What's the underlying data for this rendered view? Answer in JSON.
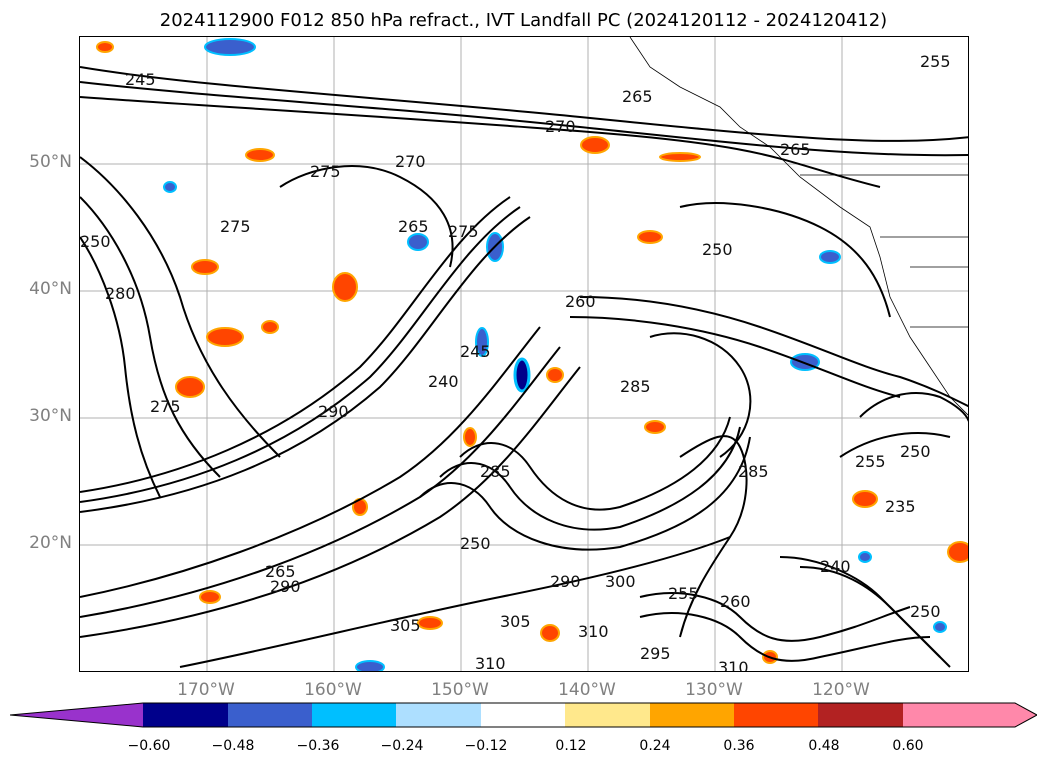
{
  "title": "2024112900 F012 850 hPa refract., IVT Landfall PC (2024120112 - 2024120412)",
  "lat_labels": [
    "50°N",
    "40°N",
    "30°N",
    "20°N"
  ],
  "lon_labels": [
    "170°W",
    "160°W",
    "150°W",
    "140°W",
    "130°W",
    "120°W"
  ],
  "colorbar": {
    "ticks": [
      "−0.60",
      "−0.48",
      "−0.36",
      "−0.24",
      "−0.12",
      "0.12",
      "0.24",
      "0.36",
      "0.48",
      "0.60"
    ],
    "colors": [
      "#9932CC",
      "#00008B",
      "#3A5FCD",
      "#00BFFF",
      "#ADDFFF",
      "#FFFFFF",
      "#FFE88C",
      "#FFA500",
      "#FF4500",
      "#B22222",
      "#FF88AA"
    ]
  },
  "contour_labels": [
    "245",
    "275",
    "275",
    "270",
    "265",
    "275",
    "250",
    "275",
    "290",
    "240",
    "245",
    "285",
    "250",
    "260",
    "285",
    "285",
    "255",
    "250",
    "235",
    "240",
    "300",
    "305",
    "310",
    "295",
    "255",
    "260",
    "310",
    "250",
    "290",
    "265",
    "280",
    "305",
    "290",
    "250",
    "310",
    "255",
    "265",
    "270",
    "265"
  ]
}
